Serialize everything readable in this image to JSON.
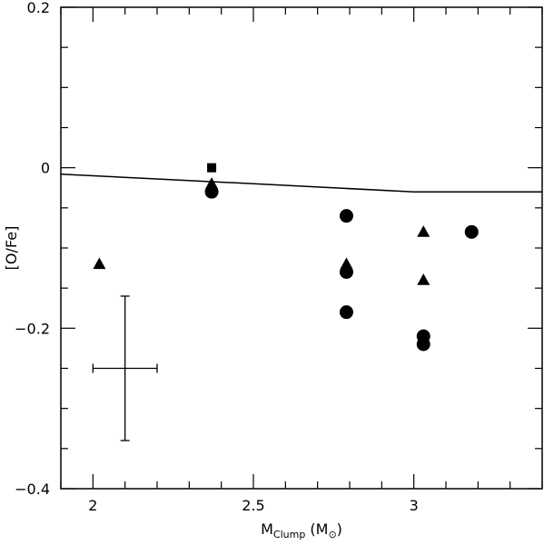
{
  "chart_data": {
    "type": "scatter",
    "xlabel": {
      "main": "M",
      "sub": "Clump",
      "unit_open": " (M",
      "unit_sub": "⊙",
      "unit_close": ")"
    },
    "ylabel": "[O/Fe]",
    "xlim": [
      1.9,
      3.4
    ],
    "ylim": [
      -0.4,
      0.2
    ],
    "x_ticks_major": [
      2,
      2.5,
      3
    ],
    "x_tick_labels": [
      "2",
      "2.5",
      "3"
    ],
    "y_ticks_major": [
      -0.4,
      -0.2,
      0,
      0.2
    ],
    "y_tick_labels": [
      "−0.4",
      "−0.2",
      "0",
      "0.2"
    ],
    "grid": false,
    "series": [
      {
        "marker": "circle",
        "points": [
          {
            "x": 2.37,
            "y": -0.03
          },
          {
            "x": 2.79,
            "y": -0.06
          },
          {
            "x": 2.79,
            "y": -0.13
          },
          {
            "x": 2.79,
            "y": -0.18
          },
          {
            "x": 3.03,
            "y": -0.21
          },
          {
            "x": 3.03,
            "y": -0.22
          },
          {
            "x": 3.18,
            "y": -0.08
          }
        ]
      },
      {
        "marker": "triangle",
        "points": [
          {
            "x": 2.02,
            "y": -0.12
          },
          {
            "x": 2.37,
            "y": -0.02
          },
          {
            "x": 2.79,
            "y": -0.12
          },
          {
            "x": 3.03,
            "y": -0.08
          },
          {
            "x": 3.03,
            "y": -0.14
          }
        ]
      },
      {
        "marker": "square",
        "points": [
          {
            "x": 2.37,
            "y": 0.0
          }
        ]
      }
    ],
    "model_line": {
      "points": [
        {
          "x": 1.9,
          "y": -0.008
        },
        {
          "x": 2.0,
          "y": -0.01
        },
        {
          "x": 2.5,
          "y": -0.02
        },
        {
          "x": 3.0,
          "y": -0.03
        },
        {
          "x": 3.4,
          "y": -0.03
        }
      ]
    },
    "error_bar": {
      "x": 2.1,
      "y": -0.25,
      "xerr": 0.1,
      "yerr": 0.09
    }
  }
}
